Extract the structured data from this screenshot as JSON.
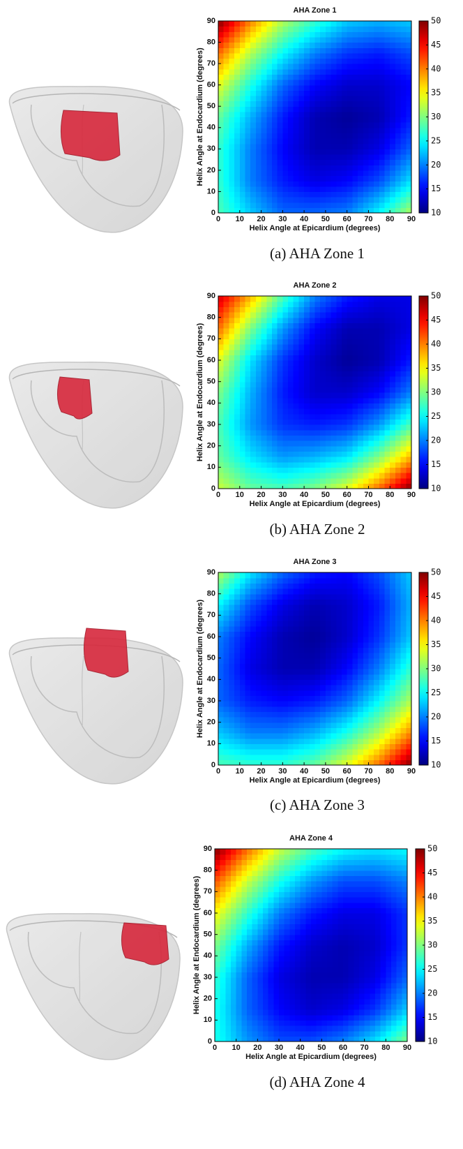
{
  "chart_data": [
    {
      "type": "heatmap",
      "title": "AHA Zone 1",
      "caption": "(a) AHA Zone 1",
      "xlabel": "Helix Angle at Epicardium (degrees)",
      "ylabel": "Helix Angle at Endocardium (degrees)",
      "x": [
        0,
        15,
        30,
        45,
        60,
        75,
        90
      ],
      "y": [
        0,
        15,
        30,
        45,
        60,
        75,
        90
      ],
      "values": [
        [
          28,
          23,
          19,
          19,
          20,
          25,
          32
        ],
        [
          27,
          20,
          16,
          14,
          15,
          18,
          24
        ],
        [
          27,
          20,
          15,
          12,
          12,
          14,
          19
        ],
        [
          29,
          22,
          16,
          12,
          11,
          12,
          16
        ],
        [
          34,
          26,
          19,
          15,
          13,
          13,
          15
        ],
        [
          41,
          32,
          25,
          20,
          17,
          16,
          18
        ],
        [
          50,
          40,
          32,
          27,
          23,
          22,
          23
        ]
      ],
      "xlim": [
        0,
        90
      ],
      "ylim": [
        0,
        90
      ],
      "xticks": [
        0,
        10,
        20,
        30,
        40,
        50,
        60,
        70,
        80,
        90
      ],
      "yticks": [
        0,
        10,
        20,
        30,
        40,
        50,
        60,
        70,
        80,
        90
      ],
      "clim": [
        10,
        50
      ],
      "cticks": [
        10,
        15,
        20,
        25,
        30,
        35,
        40,
        45,
        50
      ],
      "colormap": "jet"
    },
    {
      "type": "heatmap",
      "title": "AHA Zone 2",
      "caption": "(b) AHA Zone 2",
      "xlabel": "Helix Angle at Epicardium (degrees)",
      "ylabel": "Helix Angle at Endocardium (degrees)",
      "x": [
        0,
        15,
        30,
        45,
        60,
        75,
        90
      ],
      "y": [
        0,
        15,
        30,
        45,
        60,
        75,
        90
      ],
      "values": [
        [
          33,
          29,
          28,
          30,
          34,
          41,
          50
        ],
        [
          29,
          24,
          21,
          22,
          24,
          30,
          38
        ],
        [
          28,
          21,
          17,
          16,
          17,
          21,
          28
        ],
        [
          30,
          22,
          16,
          13,
          13,
          15,
          20
        ],
        [
          34,
          24,
          17,
          13,
          11,
          12,
          16
        ],
        [
          41,
          30,
          21,
          15,
          12,
          12,
          14
        ],
        [
          47,
          38,
          28,
          20,
          16,
          14,
          14
        ]
      ],
      "xlim": [
        0,
        90
      ],
      "ylim": [
        0,
        90
      ],
      "xticks": [
        0,
        10,
        20,
        30,
        40,
        50,
        60,
        70,
        80,
        90
      ],
      "yticks": [
        0,
        10,
        20,
        30,
        40,
        50,
        60,
        70,
        80,
        90
      ],
      "clim": [
        10,
        50
      ],
      "cticks": [
        10,
        15,
        20,
        25,
        30,
        35,
        40,
        45,
        50
      ],
      "colormap": "jet"
    },
    {
      "type": "heatmap",
      "title": "AHA Zone 3",
      "caption": "(c) AHA Zone 3",
      "xlabel": "Helix Angle at Epicardium (degrees)",
      "ylabel": "Helix Angle at Endocardium (degrees)",
      "x": [
        0,
        15,
        30,
        45,
        60,
        75,
        90
      ],
      "y": [
        0,
        15,
        30,
        45,
        60,
        75,
        90
      ],
      "values": [
        [
          28,
          27,
          27,
          29,
          34,
          41,
          50
        ],
        [
          23,
          20,
          20,
          22,
          26,
          32,
          40
        ],
        [
          19,
          16,
          15,
          16,
          19,
          25,
          32
        ],
        [
          19,
          14,
          12,
          12,
          15,
          20,
          27
        ],
        [
          20,
          15,
          12,
          11,
          13,
          17,
          23
        ],
        [
          25,
          18,
          14,
          12,
          13,
          16,
          22
        ],
        [
          32,
          24,
          19,
          16,
          15,
          18,
          23
        ]
      ],
      "xlim": [
        0,
        90
      ],
      "ylim": [
        0,
        90
      ],
      "xticks": [
        0,
        10,
        20,
        30,
        40,
        50,
        60,
        70,
        80,
        90
      ],
      "yticks": [
        0,
        10,
        20,
        30,
        40,
        50,
        60,
        70,
        80,
        90
      ],
      "clim": [
        10,
        50
      ],
      "cticks": [
        10,
        15,
        20,
        25,
        30,
        35,
        40,
        45,
        50
      ],
      "colormap": "jet"
    },
    {
      "type": "heatmap",
      "title": "AHA Zone 4",
      "caption": "(d) AHA Zone 4",
      "xlabel": "Helix Angle at Epicardium (degrees)",
      "ylabel": "Helix Angle at Endocardium (degrees)",
      "x": [
        0,
        15,
        30,
        45,
        60,
        75,
        90
      ],
      "y": [
        0,
        15,
        30,
        45,
        60,
        75,
        90
      ],
      "values": [
        [
          26,
          21,
          18,
          18,
          20,
          24,
          30
        ],
        [
          26,
          19,
          15,
          13,
          14,
          17,
          23
        ],
        [
          27,
          19,
          14,
          12,
          12,
          14,
          19
        ],
        [
          30,
          22,
          16,
          13,
          12,
          13,
          17
        ],
        [
          35,
          27,
          20,
          16,
          14,
          14,
          17
        ],
        [
          42,
          33,
          26,
          21,
          18,
          18,
          20
        ],
        [
          50,
          41,
          33,
          28,
          25,
          24,
          25
        ]
      ],
      "xlim": [
        0,
        90
      ],
      "ylim": [
        0,
        90
      ],
      "xticks": [
        0,
        10,
        20,
        30,
        40,
        50,
        60,
        70,
        80,
        90
      ],
      "yticks": [
        0,
        10,
        20,
        30,
        40,
        50,
        60,
        70,
        80,
        90
      ],
      "clim": [
        10,
        50
      ],
      "cticks": [
        10,
        15,
        20,
        25,
        30,
        35,
        40,
        45,
        50
      ],
      "colormap": "jet"
    }
  ]
}
